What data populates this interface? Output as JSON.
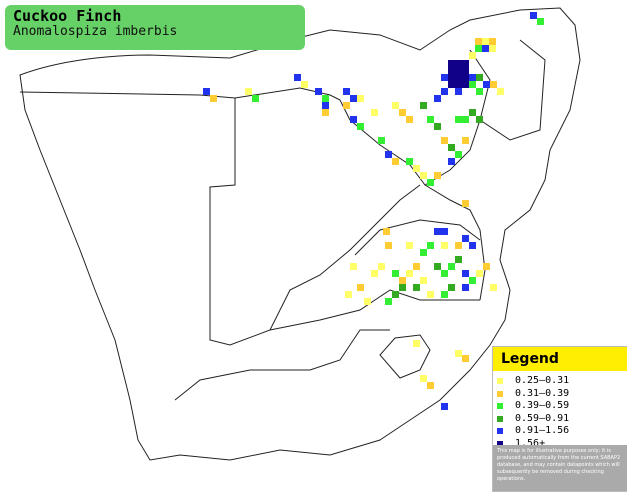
{
  "title": "Cuckoo Finch",
  "subtitle": "Anomalospiza imberbis",
  "legend": {
    "title": "Legend",
    "items": [
      {
        "label": "0.25–0.31",
        "color": "#ffff66"
      },
      {
        "label": "0.31–0.39",
        "color": "#ffcc33"
      },
      {
        "label": "0.39–0.59",
        "color": "#33ee33"
      },
      {
        "label": "0.59–0.91",
        "color": "#33aa22"
      },
      {
        "label": "0.91–1.56",
        "color": "#2233ee"
      },
      {
        "label": "1.56+",
        "color": "#110088"
      }
    ],
    "disclaimer": "This map is for illustrative purposes only; it is produced automatically from the current SABAP2 database, and may contain datapoints which will subsequently be removed during checking operations."
  }
}
